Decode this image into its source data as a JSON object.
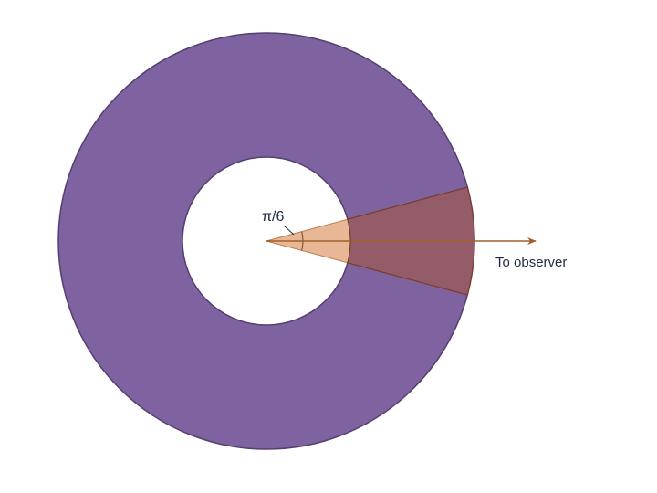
{
  "diagram": {
    "angle_label": "π/6",
    "observer_label": "To observer",
    "opening_angle_rad": 0.5236,
    "colors": {
      "ring_fill": "#7f63a1",
      "ring_stroke": "#54406f",
      "cone_inner_fill": "#e8b795",
      "cone_inner_stroke": "#b97c4a",
      "cone_outer_fill": "#945b68",
      "cone_outer_stroke": "#7a3d2a",
      "arrow": "#a0602a",
      "text": "#1f2a44"
    }
  }
}
